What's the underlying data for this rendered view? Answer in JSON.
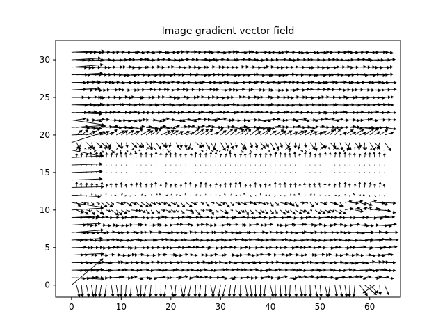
{
  "chart_data": {
    "type": "quiver",
    "title": "Image gradient vector field",
    "xlabel": "",
    "ylabel": "",
    "xlim": [
      -3.2,
      66.2
    ],
    "ylim": [
      -1.6,
      32.6
    ],
    "xticks": [
      0,
      10,
      20,
      30,
      40,
      50,
      60
    ],
    "yticks": [
      0,
      5,
      10,
      15,
      20,
      25,
      30
    ],
    "grid": false,
    "arrow_color": "#000000",
    "field": {
      "x_range": [
        0,
        63
      ],
      "y_range": [
        0,
        31
      ],
      "description_rows": [
        {
          "y": 31,
          "u": 1.0,
          "v": 0.0
        },
        {
          "y": 20,
          "u": 0.6,
          "v": 0.6
        },
        {
          "y": 19,
          "u": 0.3,
          "v": -0.6
        },
        {
          "y": 16,
          "u": 0.0,
          "v": 0.0
        },
        {
          "y": 13,
          "u": 0.0,
          "v": 0.5
        },
        {
          "y": 11,
          "u": 0.5,
          "v": -0.5
        },
        {
          "y": 1,
          "u": 0.8,
          "v": 0.1
        },
        {
          "y": 0,
          "u": 0.0,
          "v": -1.0
        }
      ]
    }
  }
}
